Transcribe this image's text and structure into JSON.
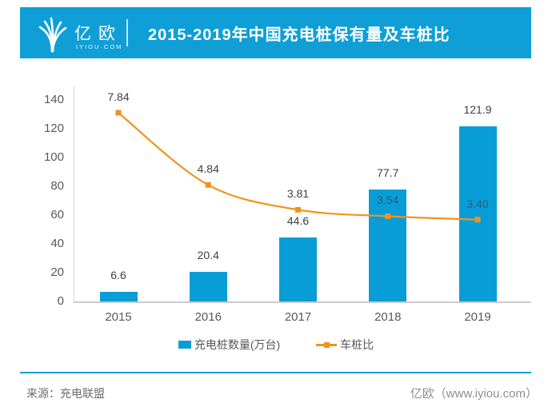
{
  "header": {
    "logo": {
      "name": "亿欧",
      "sub": "IYIOU·COM",
      "icon": "yiou-logo-icon"
    },
    "title": "2015-2019年中国充电桩保有量及车桩比"
  },
  "chart_data": {
    "type": "bar",
    "categories": [
      "2015",
      "2016",
      "2017",
      "2018",
      "2019"
    ],
    "series": [
      {
        "name": "充电桩数量(万台)",
        "type": "bar",
        "values": [
          6.6,
          20.4,
          44.6,
          77.7,
          121.9
        ],
        "labels": [
          "6.6",
          "20.4",
          "44.6",
          "77.7",
          "121.9"
        ],
        "color": "#099dd7"
      },
      {
        "name": "车桩比",
        "type": "line",
        "values": [
          7.84,
          4.84,
          3.81,
          3.54,
          3.4
        ],
        "labels": [
          "7.84",
          "4.84",
          "3.81",
          "3.54",
          "3.40"
        ],
        "color": "#f0931c"
      }
    ],
    "y_axis": {
      "ticks": [
        0,
        20,
        40,
        60,
        80,
        100,
        120,
        140
      ],
      "min": 0,
      "max": 140
    },
    "grid": false,
    "legend_position": "bottom",
    "title": "2015-2019年中国充电桩保有量及车桩比"
  },
  "colors": {
    "header_band": "#0f9fd6",
    "bar": "#099dd7",
    "line": "#f0931c",
    "axis_text": "#595959",
    "data_label": "#404040",
    "data_label_on_bar": "#2d5a75",
    "footer_divider": "#1d9cd6"
  },
  "footer": {
    "source": "来源：充电联盟",
    "credit": "亿欧（www.iyiou.com）"
  }
}
